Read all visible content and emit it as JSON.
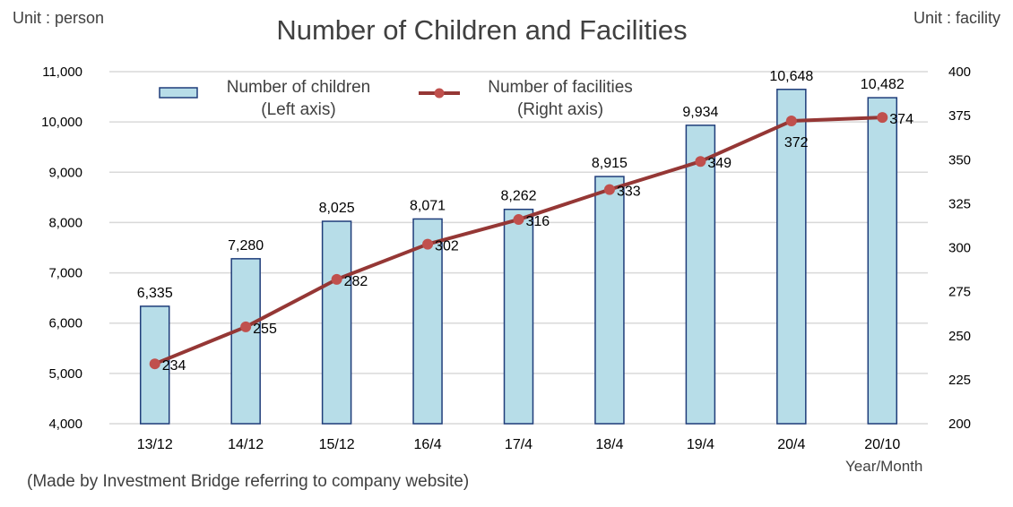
{
  "header": {
    "title": "Number of Children and Facilities",
    "unit_left": "Unit : person",
    "unit_right": "Unit : facility"
  },
  "footer": {
    "source_note": "(Made by Investment Bridge referring to company website)"
  },
  "chart_data": {
    "type": "bar+line",
    "title": "Number of Children and Facilities",
    "xlabel": "Year/Month",
    "ylabel_left": "Unit : person",
    "ylabel_right": "Unit : facility",
    "categories": [
      "13/12",
      "14/12",
      "15/12",
      "16/4",
      "17/4",
      "18/4",
      "19/4",
      "20/4",
      "20/10"
    ],
    "y_left": {
      "range": [
        4000,
        11000
      ],
      "ticks": [
        4000,
        5000,
        6000,
        7000,
        8000,
        9000,
        10000,
        11000
      ],
      "tick_labels": [
        "4,000",
        "5,000",
        "6,000",
        "7,000",
        "8,000",
        "9,000",
        "10,000",
        "11,000"
      ]
    },
    "y_right": {
      "range": [
        200,
        400
      ],
      "ticks": [
        200,
        225,
        250,
        275,
        300,
        325,
        350,
        375,
        400
      ],
      "tick_labels": [
        "200",
        "225",
        "250",
        "275",
        "300",
        "325",
        "350",
        "375",
        "400"
      ]
    },
    "grid": true,
    "legend_position": "top",
    "series": [
      {
        "name": "Number of children",
        "legend_line1": "Number of children",
        "legend_line2": "(Left axis)",
        "type": "bar",
        "axis": "left",
        "values": [
          6335,
          7280,
          8025,
          8071,
          8262,
          8915,
          9934,
          10648,
          10482
        ],
        "labels": [
          "6,335",
          "7,280",
          "8,025",
          "8,071",
          "8,262",
          "8,915",
          "9,934",
          "10,648",
          "10,482"
        ],
        "fill_color": "#b7dde8",
        "stroke_color": "#1f3d7a"
      },
      {
        "name": "Number of facilities",
        "legend_line1": "Number of facilities",
        "legend_line2": "(Right axis)",
        "type": "line",
        "axis": "right",
        "values": [
          234,
          255,
          282,
          302,
          316,
          333,
          349,
          372,
          374
        ],
        "labels": [
          "234",
          "255",
          "282",
          "302",
          "316",
          "333",
          "349",
          "372",
          "374"
        ],
        "line_color": "#953735",
        "marker_color": "#c0504d"
      }
    ]
  }
}
